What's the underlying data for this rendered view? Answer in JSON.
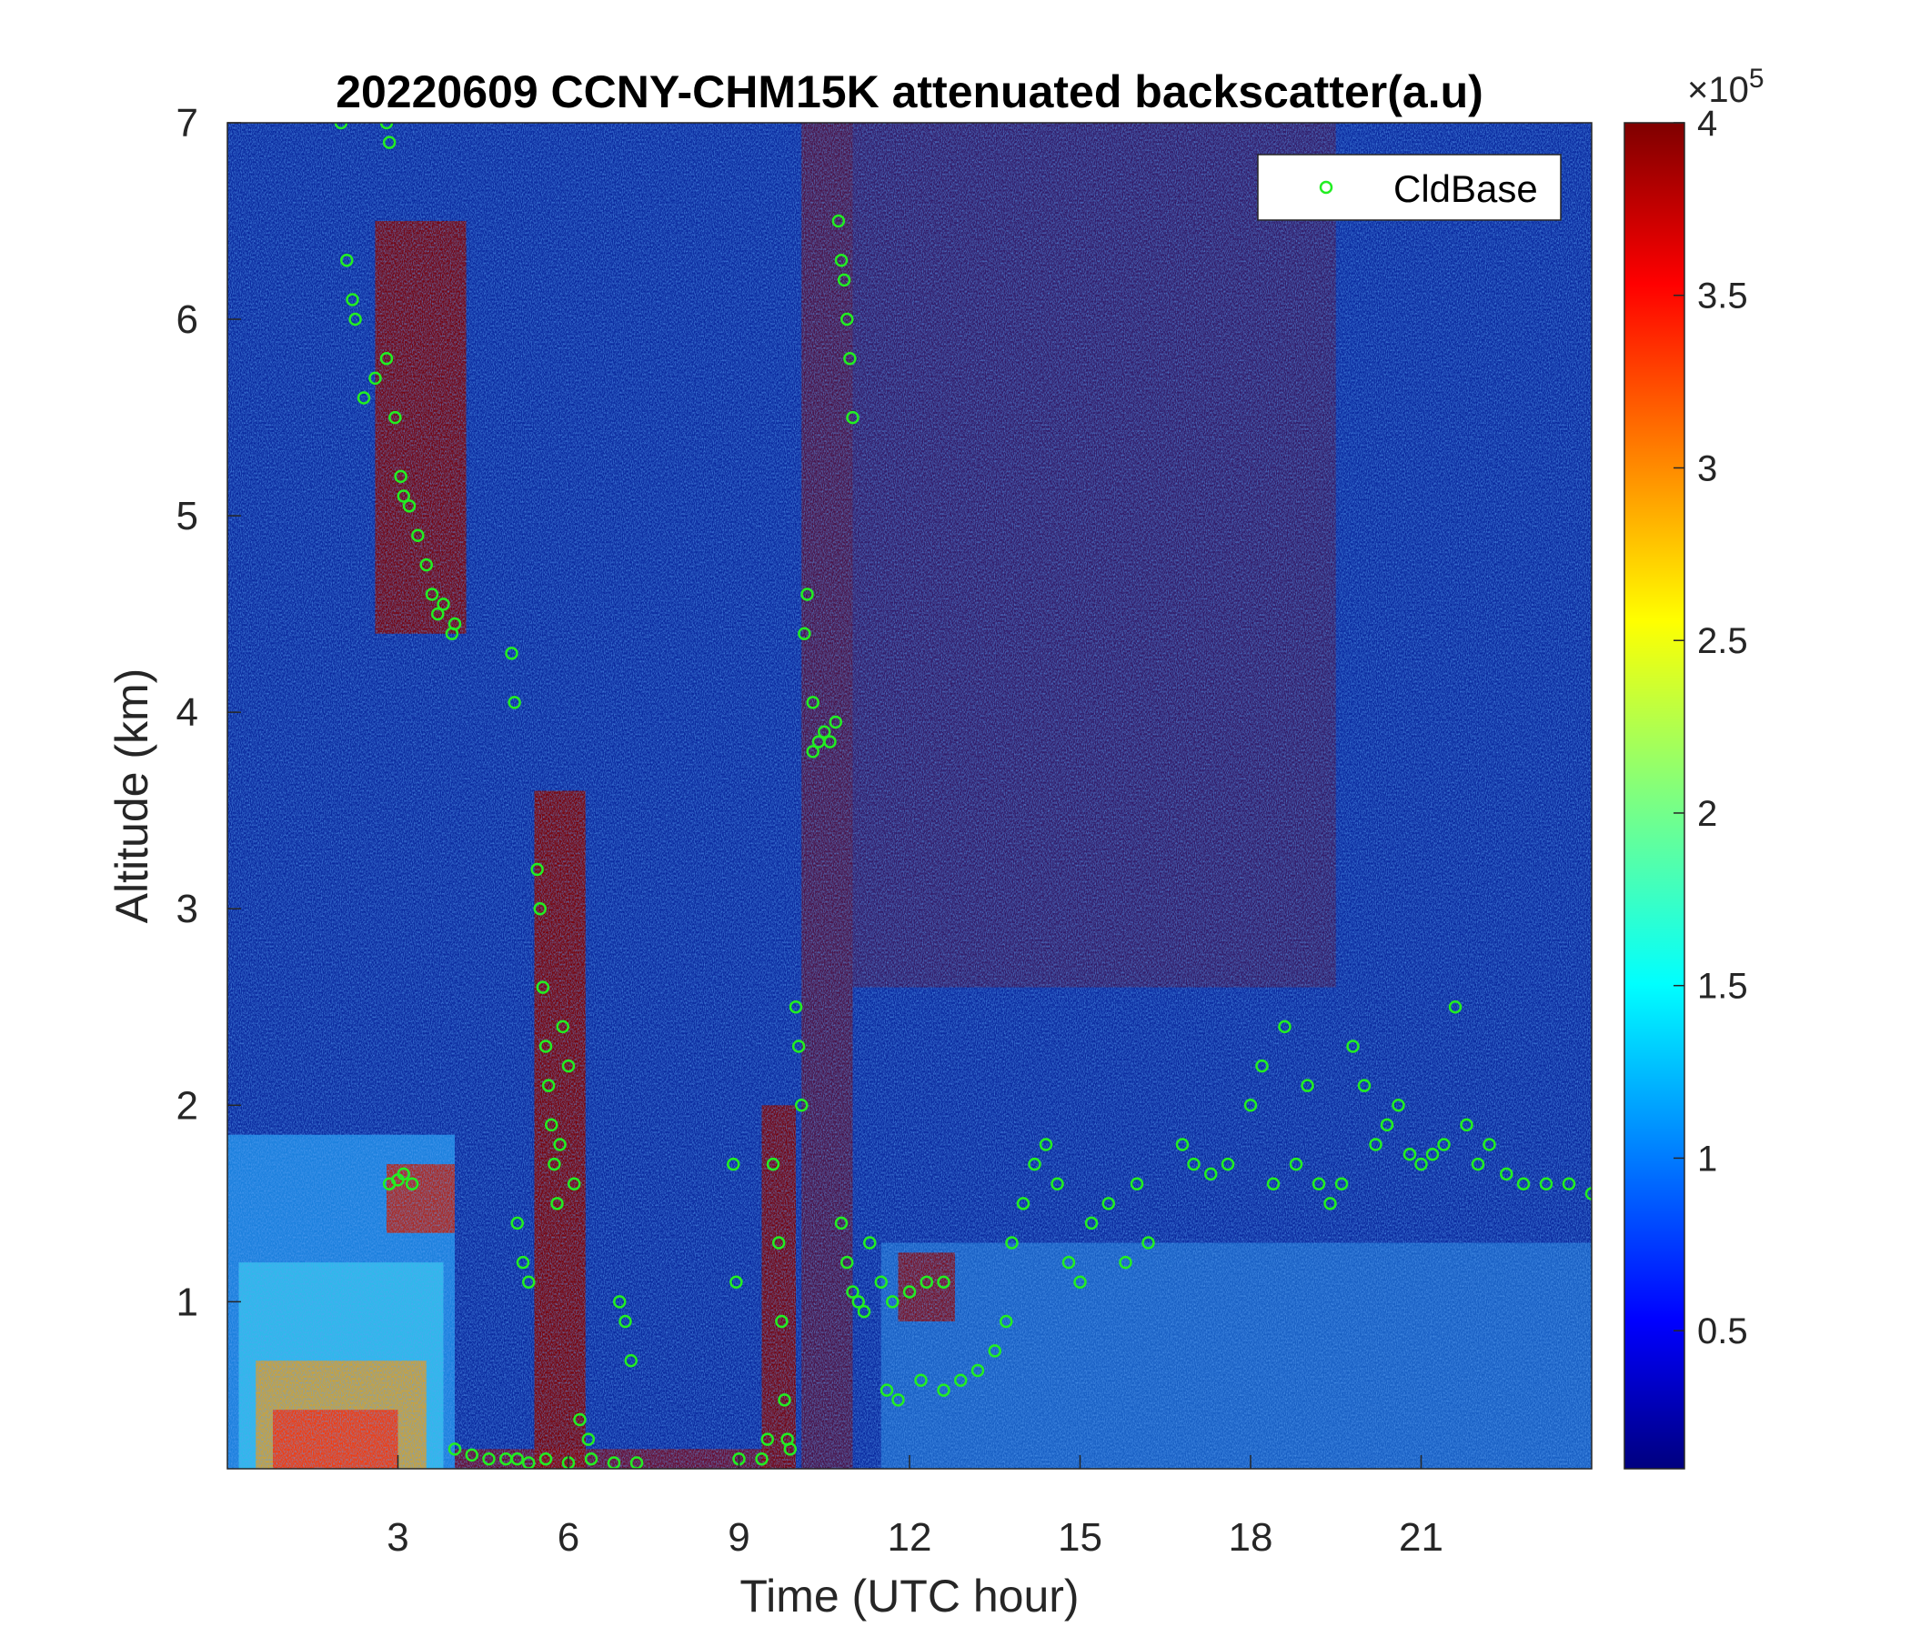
{
  "chart_data": {
    "type": "heatmap",
    "title": "20220609 CCNY-CHM15K attenuated backscatter(a.u)",
    "xlabel": "Time (UTC hour)",
    "ylabel": "Altitude (km)",
    "xlim": [
      0,
      24
    ],
    "ylim": [
      0.15,
      7
    ],
    "xticks": [
      3,
      6,
      9,
      12,
      15,
      18,
      21
    ],
    "yticks": [
      1,
      2,
      3,
      4,
      5,
      6,
      7
    ],
    "colorbar": {
      "colormap": "jet",
      "range": [
        0.1,
        4
      ],
      "ticks": [
        0.5,
        1,
        1.5,
        2,
        2.5,
        3,
        3.5,
        4
      ],
      "tick_labels": [
        "0.5",
        "1",
        "1.5",
        "2",
        "2.5",
        "3",
        "3.5",
        "4"
      ],
      "exponent_prefix": "×10",
      "exponent_power": "5"
    },
    "legend": {
      "placement": "top-right",
      "entries": [
        "CldBase"
      ]
    },
    "colors": {
      "background": "#0a2a9e",
      "cloud_base_marker": "#22ee22",
      "saturated": "#7f0000"
    },
    "series": [
      {
        "name": "CldBase",
        "marker": "circle",
        "x": [
          2.0,
          2.8,
          2.85,
          2.1,
          2.2,
          2.25,
          2.4,
          2.6,
          2.8,
          2.95,
          3.05,
          3.1,
          3.2,
          3.35,
          3.5,
          3.6,
          3.7,
          3.8,
          3.95,
          4.0,
          2.85,
          3.0,
          3.1,
          3.25,
          4.0,
          4.3,
          4.6,
          4.9,
          5.1,
          5.3,
          5.6,
          6.0,
          6.4,
          6.8,
          7.2,
          5.0,
          5.05,
          5.1,
          5.2,
          5.3,
          5.45,
          5.5,
          5.55,
          5.6,
          5.65,
          5.7,
          5.75,
          5.8,
          5.85,
          5.9,
          6.0,
          6.1,
          6.2,
          6.35,
          6.9,
          7.0,
          7.1,
          8.9,
          8.95,
          9.0,
          9.4,
          9.5,
          9.6,
          9.7,
          9.75,
          9.8,
          9.85,
          9.9,
          10.0,
          10.05,
          10.1,
          10.15,
          10.2,
          10.3,
          10.4,
          10.3,
          10.5,
          10.6,
          10.7,
          10.75,
          10.8,
          10.85,
          10.9,
          10.95,
          11.0,
          10.8,
          10.9,
          11.0,
          11.1,
          11.2,
          11.3,
          11.5,
          11.7,
          12.0,
          12.3,
          12.6,
          11.6,
          11.8,
          12.2,
          12.6,
          12.9,
          13.2,
          13.5,
          13.7,
          13.8,
          14.0,
          14.2,
          14.4,
          14.6,
          14.8,
          15.0,
          15.2,
          15.5,
          15.8,
          16.0,
          16.2,
          16.8,
          17.0,
          17.3,
          17.6,
          18.0,
          18.2,
          18.4,
          18.6,
          18.8,
          19.0,
          19.2,
          19.4,
          19.6,
          19.8,
          20.0,
          20.2,
          20.4,
          20.6,
          20.8,
          21.0,
          21.2,
          21.4,
          21.6,
          21.8,
          22.0,
          22.2,
          22.5,
          22.8,
          23.2,
          23.6,
          24.0
        ],
        "y": [
          7.0,
          7.0,
          6.9,
          6.3,
          6.1,
          6.0,
          5.6,
          5.7,
          5.8,
          5.5,
          5.2,
          5.1,
          5.05,
          4.9,
          4.75,
          4.6,
          4.5,
          4.55,
          4.4,
          4.45,
          1.6,
          1.62,
          1.65,
          1.6,
          0.25,
          0.22,
          0.2,
          0.2,
          0.2,
          0.18,
          0.2,
          0.18,
          0.2,
          0.18,
          0.18,
          4.3,
          4.05,
          1.4,
          1.2,
          1.1,
          3.2,
          3.0,
          2.6,
          2.3,
          2.1,
          1.9,
          1.7,
          1.5,
          1.8,
          2.4,
          2.2,
          1.6,
          0.4,
          0.3,
          1.0,
          0.9,
          0.7,
          1.7,
          1.1,
          0.2,
          0.2,
          0.3,
          1.7,
          1.3,
          0.9,
          0.5,
          0.3,
          0.25,
          2.5,
          2.3,
          2.0,
          4.4,
          4.6,
          3.8,
          3.85,
          4.05,
          3.9,
          3.85,
          3.95,
          6.5,
          6.3,
          6.2,
          6.0,
          5.8,
          5.5,
          1.4,
          1.2,
          1.05,
          1.0,
          0.95,
          1.3,
          1.1,
          1.0,
          1.05,
          1.1,
          1.1,
          0.55,
          0.5,
          0.6,
          0.55,
          0.6,
          0.65,
          0.75,
          0.9,
          1.3,
          1.5,
          1.7,
          1.8,
          1.6,
          1.2,
          1.1,
          1.4,
          1.5,
          1.2,
          1.6,
          1.3,
          1.8,
          1.7,
          1.65,
          1.7,
          2.0,
          2.2,
          1.6,
          2.4,
          1.7,
          2.1,
          1.6,
          1.5,
          1.6,
          2.3,
          2.1,
          1.8,
          1.9,
          2.0,
          1.75,
          1.7,
          1.75,
          1.8,
          2.5,
          1.9,
          1.7,
          1.8,
          1.65,
          1.6,
          1.6,
          1.6,
          1.55
        ]
      }
    ]
  }
}
